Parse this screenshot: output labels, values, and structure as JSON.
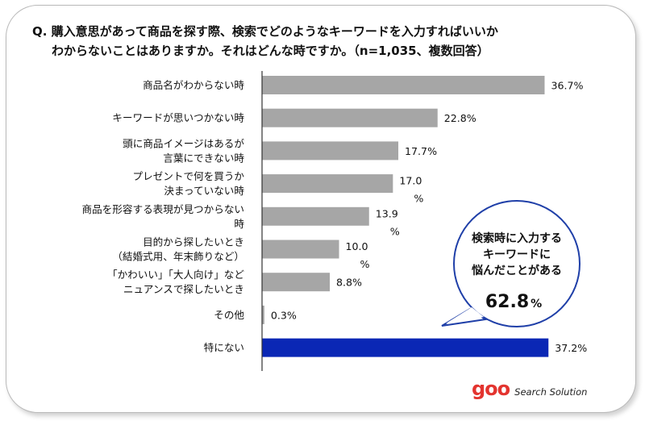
{
  "title": {
    "line1": "Q. 購入意思があって商品を探す際、検索でどのようなキーワードを入力すればいいか",
    "line2": "わからないことはありますか。それはどんな時ですか。（n=1,035、複数回答）"
  },
  "chart_data": {
    "type": "bar",
    "orientation": "horizontal",
    "categories": [
      [
        "商品名がわからない時"
      ],
      [
        "キーワードが思いつかない時"
      ],
      [
        "頭に商品イメージはあるが",
        "言葉にできない時"
      ],
      [
        "プレゼントで何を買うか",
        "決まっていない時"
      ],
      [
        "商品を形容する表現が見つからない",
        "時"
      ],
      [
        "目的から探したいとき",
        "（結婚式用、年末飾りなど）"
      ],
      [
        "「かわいい」「大人向け」など",
        "ニュアンスで探したいとき"
      ],
      [
        "その他"
      ],
      [
        "特にない"
      ]
    ],
    "values": [
      36.7,
      22.8,
      17.7,
      17.0,
      13.9,
      10.0,
      8.8,
      0.3,
      37.2
    ],
    "value_labels": [
      [
        "36.7%"
      ],
      [
        "22.8%"
      ],
      [
        "17.7%"
      ],
      [
        "17.0",
        "%"
      ],
      [
        "13.9",
        "%"
      ],
      [
        "10.0",
        "%"
      ],
      [
        "8.8%"
      ],
      [
        "0.3%"
      ],
      [
        "37.2%"
      ]
    ],
    "unit": "%",
    "colors": {
      "default": "#a6a6a6",
      "highlight": "#0a27b5",
      "highlight_index": 8,
      "axis": "#333333"
    }
  },
  "callout": {
    "lines": [
      "検索時に入力する",
      "キーワードに",
      "悩んだことがある"
    ],
    "value": "62.8",
    "unit": "%",
    "border_color": "#1f3fa8"
  },
  "brand": {
    "logo": "goo",
    "tagline": "Search Solution",
    "logo_color": "#e3342f"
  }
}
